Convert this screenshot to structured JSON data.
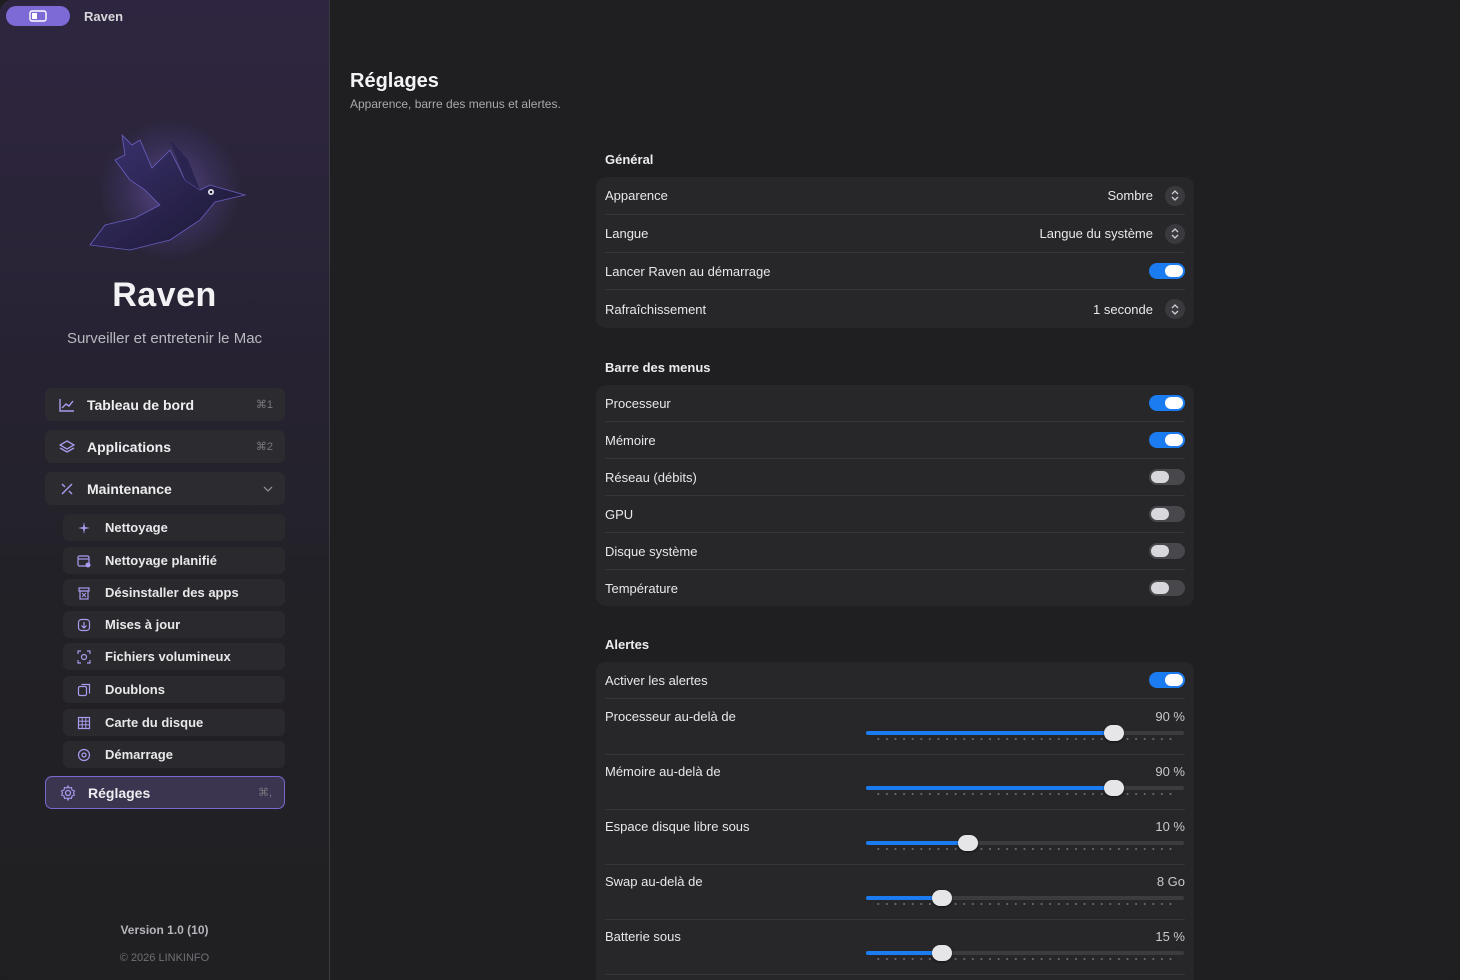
{
  "window": {
    "title": "Raven"
  },
  "sidebar": {
    "brand": "Raven",
    "tagline": "Surveiller et entretenir le Mac",
    "nav": [
      {
        "label": "Tableau de bord",
        "shortcut": "⌘1",
        "icon": "chart-icon"
      },
      {
        "label": "Applications",
        "shortcut": "⌘2",
        "icon": "layers-icon"
      },
      {
        "label": "Maintenance",
        "shortcut": "",
        "icon": "tools-icon",
        "expanded": true
      }
    ],
    "sub": [
      {
        "label": "Nettoyage",
        "icon": "sparkle-icon"
      },
      {
        "label": "Nettoyage planifié",
        "icon": "calendar-icon"
      },
      {
        "label": "Désinstaller des apps",
        "icon": "trash-icon"
      },
      {
        "label": "Mises à jour",
        "icon": "download-icon"
      },
      {
        "label": "Fichiers volumineux",
        "icon": "scan-icon"
      },
      {
        "label": "Doublons",
        "icon": "copy-icon"
      },
      {
        "label": "Carte du disque",
        "icon": "grid-icon"
      },
      {
        "label": "Démarrage",
        "icon": "power-icon"
      }
    ],
    "settings": {
      "label": "Réglages",
      "shortcut": "⌘,",
      "icon": "gear-icon",
      "active": true
    },
    "version": "Version 1.0 (10)",
    "copyright": "© 2026 LINKINFO"
  },
  "main": {
    "title": "Réglages",
    "subtitle": "Apparence, barre des menus et alertes.",
    "general": {
      "title": "Général",
      "rows": [
        {
          "label": "Apparence",
          "value": "Sombre"
        },
        {
          "label": "Langue",
          "value": "Langue du système"
        },
        {
          "label": "Lancer Raven au démarrage",
          "toggle": true
        },
        {
          "label": "Rafraîchissement",
          "value": "1 seconde"
        }
      ]
    },
    "menubar": {
      "title": "Barre des menus",
      "rows": [
        {
          "label": "Processeur",
          "toggle": true
        },
        {
          "label": "Mémoire",
          "toggle": true
        },
        {
          "label": "Réseau (débits)",
          "toggle": false
        },
        {
          "label": "GPU",
          "toggle": false
        },
        {
          "label": "Disque système",
          "toggle": false
        },
        {
          "label": "Température",
          "toggle": false
        }
      ]
    },
    "alerts": {
      "title": "Alertes",
      "enable": {
        "label": "Activer les alertes",
        "toggle": true
      },
      "sliders": [
        {
          "label": "Processeur au-delà de",
          "value": "90 %",
          "fraction": 0.78
        },
        {
          "label": "Mémoire au-delà de",
          "value": "90 %",
          "fraction": 0.78
        },
        {
          "label": "Espace disque libre sous",
          "value": "10 %",
          "fraction": 0.32
        },
        {
          "label": "Swap au-delà de",
          "value": "8 Go",
          "fraction": 0.24
        },
        {
          "label": "Batterie sous",
          "value": "15 %",
          "fraction": 0.24
        }
      ]
    }
  },
  "colors": {
    "accent": "#1a7cf0",
    "brand": "#7d6ad6"
  }
}
